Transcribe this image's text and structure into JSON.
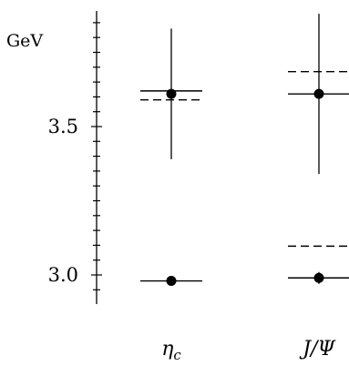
{
  "chart_data": {
    "type": "scatter",
    "title": "",
    "xlabel": "",
    "ylabel": "GeV",
    "ylim": [
      2.89,
      3.9
    ],
    "yticks_labeled": [
      {
        "value": 3.0,
        "label": "3.0"
      },
      {
        "value": 3.5,
        "label": "3.5"
      }
    ],
    "yticks_minor_step": 0.05,
    "grid": false,
    "categories": [
      {
        "label": "η",
        "sub": "c"
      },
      {
        "label": "J/Ψ",
        "sub": ""
      }
    ],
    "points": [
      {
        "category": 0,
        "y": 3.61,
        "err_low": 0.22,
        "err_high": 0.22
      },
      {
        "category": 0,
        "y": 2.98,
        "err_low": 0.0,
        "err_high": 0.0
      },
      {
        "category": 1,
        "y": 3.61,
        "err_low": 0.27,
        "err_high": 0.27
      },
      {
        "category": 1,
        "y": 2.99,
        "err_low": 0.02,
        "err_high": 0.02
      }
    ],
    "reference_lines_solid": [
      {
        "category": 0,
        "y": 3.62
      },
      {
        "category": 0,
        "y": 2.98
      },
      {
        "category": 1,
        "y": 3.61
      },
      {
        "category": 1,
        "y": 2.99
      }
    ],
    "reference_lines_dashed": [
      {
        "category": 0,
        "y": 3.59
      },
      {
        "category": 1,
        "y": 3.685
      },
      {
        "category": 1,
        "y": 3.097
      }
    ]
  }
}
